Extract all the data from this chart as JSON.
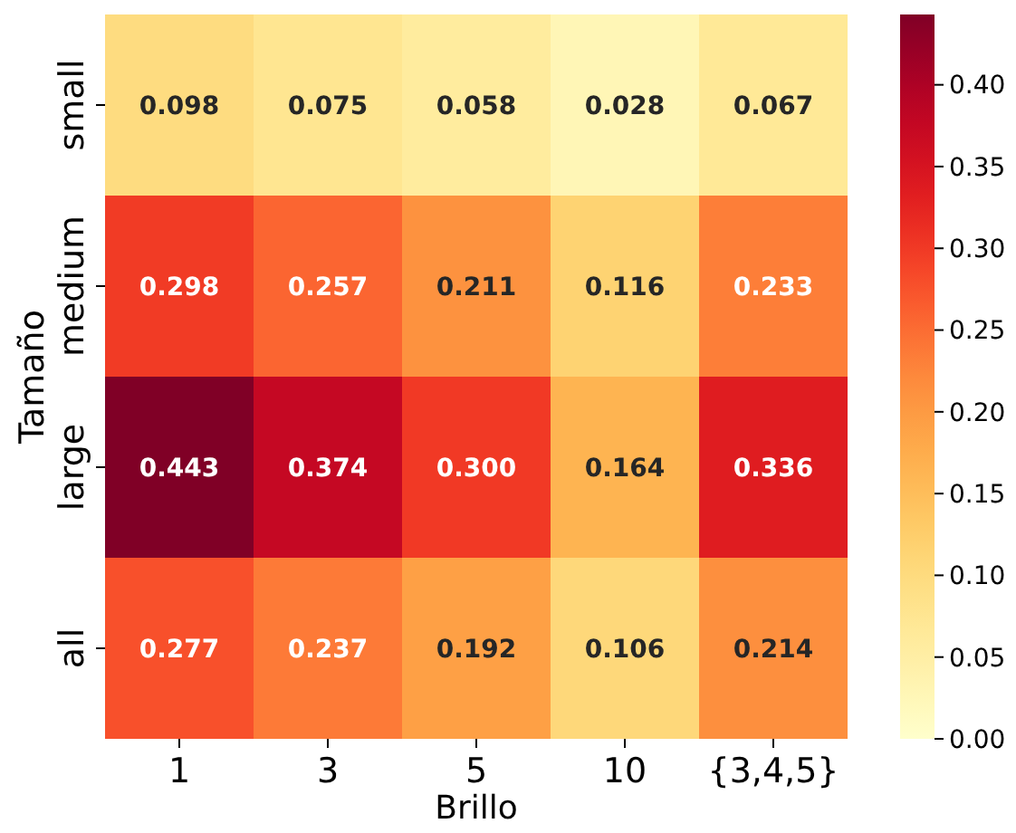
{
  "chart_data": {
    "type": "heatmap",
    "xlabel": "Brillo",
    "ylabel": "Tamaño",
    "categories": [
      "1",
      "3",
      "5",
      "10",
      "{3,4,5}"
    ],
    "y_categories": [
      "small",
      "medium",
      "large",
      "all"
    ],
    "cells": [
      [
        0.098,
        0.075,
        0.058,
        0.028,
        0.067
      ],
      [
        0.298,
        0.257,
        0.211,
        0.116,
        0.233
      ],
      [
        0.443,
        0.374,
        0.3,
        0.164,
        0.336
      ],
      [
        0.277,
        0.237,
        0.192,
        0.106,
        0.214
      ]
    ],
    "cell_labels": [
      [
        "0.098",
        "0.075",
        "0.058",
        "0.028",
        "0.067"
      ],
      [
        "0.298",
        "0.257",
        "0.211",
        "0.116",
        "0.233"
      ],
      [
        "0.443",
        "0.374",
        "0.300",
        "0.164",
        "0.336"
      ],
      [
        "0.277",
        "0.237",
        "0.192",
        "0.106",
        "0.214"
      ]
    ],
    "clim": [
      0,
      0.443
    ],
    "cticks": [
      {
        "value": 0,
        "label": "0.00"
      },
      {
        "value": 0.05,
        "label": "0.05"
      },
      {
        "value": 0.1,
        "label": "0.10"
      },
      {
        "value": 0.15,
        "label": "0.15"
      },
      {
        "value": 0.2,
        "label": "0.20"
      },
      {
        "value": 0.25,
        "label": "0.25"
      },
      {
        "value": 0.3,
        "label": "0.30"
      },
      {
        "value": 0.35,
        "label": "0.35"
      },
      {
        "value": 0.4,
        "label": "0.40"
      }
    ]
  }
}
